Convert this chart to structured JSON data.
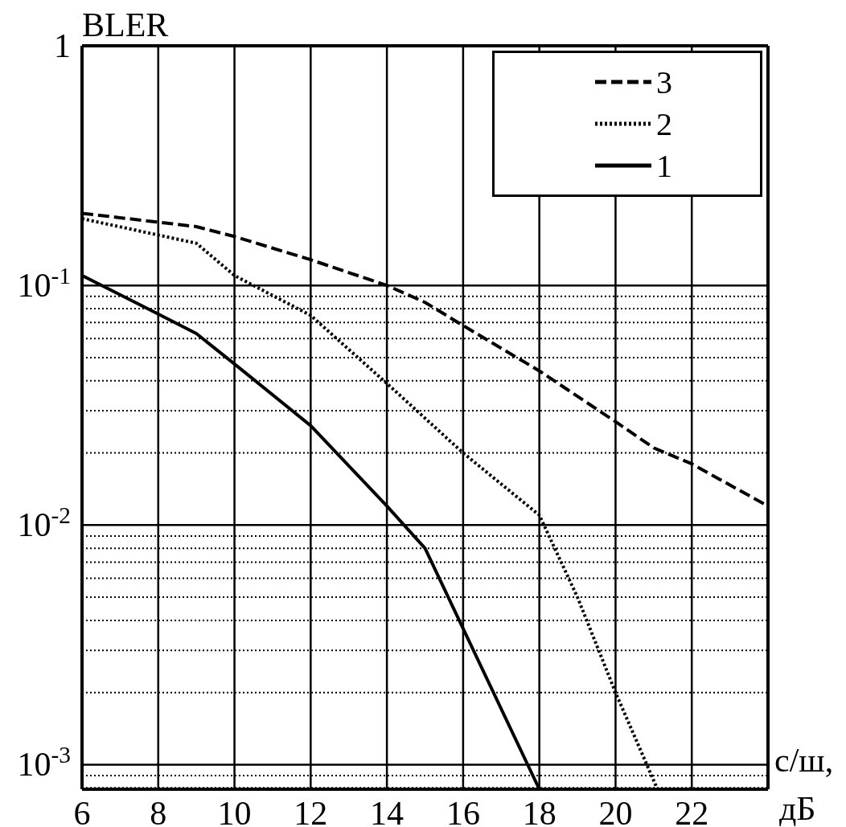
{
  "chart_data": {
    "type": "line",
    "xlabel": "с/ш, дБ",
    "ylabel": "BLER",
    "log": "y",
    "grid": true,
    "legend": "top right",
    "xlim": [
      6,
      24
    ],
    "ylim": [
      0.00079,
      1
    ],
    "xticks": [
      6,
      8,
      10,
      12,
      14,
      16,
      18,
      20,
      22,
      {
        "value": 24,
        "label": null
      }
    ],
    "yticks": [
      {
        "value": 1,
        "label": "1"
      },
      {
        "value": 0.1,
        "label": "10$^{-1}$"
      },
      {
        "value": 0.09,
        "label": null
      },
      {
        "value": 0.08,
        "label": null
      },
      {
        "value": 0.07,
        "label": null
      },
      {
        "value": 0.06,
        "label": null
      },
      {
        "value": 0.05,
        "label": null
      },
      {
        "value": 0.04,
        "label": null
      },
      {
        "value": 0.03,
        "label": null
      },
      {
        "value": 0.02,
        "label": null
      },
      {
        "value": 0.01,
        "label": "10$^{-2}$"
      },
      {
        "value": 0.009,
        "label": null
      },
      {
        "value": 0.008,
        "label": null
      },
      {
        "value": 0.007,
        "label": null
      },
      {
        "value": 0.006,
        "label": null
      },
      {
        "value": 0.005,
        "label": null
      },
      {
        "value": 0.004,
        "label": null
      },
      {
        "value": 0.003,
        "label": null
      },
      {
        "value": 0.002,
        "label": null
      },
      {
        "value": 0.001,
        "label": "10$^{-3}$"
      },
      {
        "value": 0.0009,
        "label": null
      },
      {
        "value": 0.0008,
        "label": null
      }
    ],
    "series": [
      {
        "name": "3",
        "color": "#000000",
        "line_style": "dashed",
        "x": [
          6,
          9,
          10,
          12,
          14,
          15,
          16,
          18,
          20,
          21,
          22,
          24
        ],
        "values": [
          0.2,
          0.176,
          0.16,
          0.128,
          0.1,
          0.085,
          0.068,
          0.044,
          0.027,
          0.021,
          0.018,
          0.012
        ]
      },
      {
        "name": "2",
        "color": "#000000",
        "line_style": "dotted",
        "x": [
          6,
          9,
          10,
          12,
          14,
          16,
          18,
          19,
          20,
          21.1
        ],
        "values": [
          0.19,
          0.15,
          0.11,
          0.075,
          0.039,
          0.02,
          0.011,
          0.005,
          0.002,
          0.00079
        ]
      },
      {
        "name": "1",
        "color": "#000000",
        "line_style": "solid",
        "x": [
          6,
          8,
          9,
          10,
          12,
          14,
          15,
          16,
          18
        ],
        "values": [
          0.11,
          0.076,
          0.063,
          0.047,
          0.026,
          0.012,
          0.008,
          0.0037,
          0.00079
        ]
      }
    ]
  }
}
